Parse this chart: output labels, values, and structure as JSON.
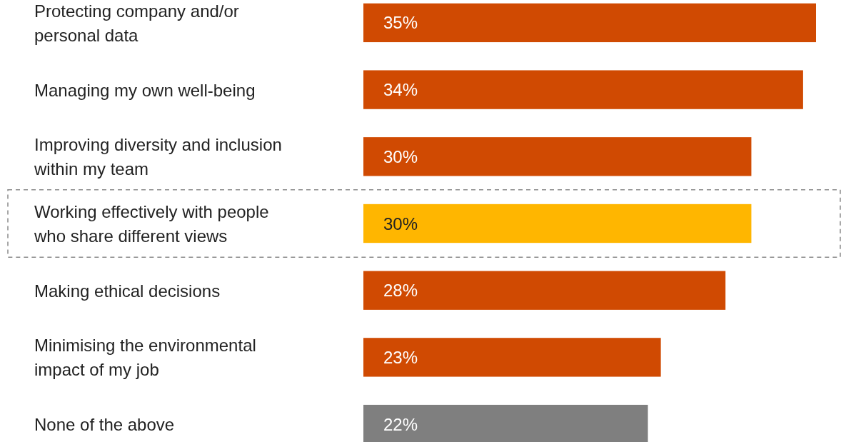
{
  "chart_data": {
    "type": "bar",
    "orientation": "horizontal",
    "categories": [
      "Protecting company and/or personal data",
      "Managing my own well-being",
      "Improving diversity and inclusion within my team",
      "Working effectively with people who share different views",
      "Making ethical decisions",
      "Minimising the environmental impact of my job",
      "None of the above"
    ],
    "values": [
      35,
      34,
      30,
      30,
      28,
      23,
      22
    ],
    "colors": [
      "#d04a02",
      "#d04a02",
      "#d04a02",
      "#ffb600",
      "#d04a02",
      "#d04a02",
      "#7f7f7f"
    ],
    "value_labels": [
      "35%",
      "34%",
      "30%",
      "30%",
      "28%",
      "23%",
      "22%"
    ]
  }
}
